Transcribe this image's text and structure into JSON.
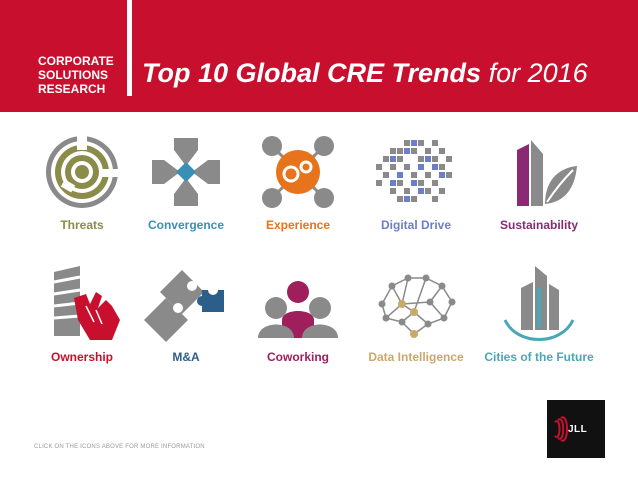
{
  "header": {
    "org_lines": [
      "CORPORATE",
      "SOLUTIONS",
      "RESEARCH"
    ],
    "title_bold": "Top 10 Global CRE Trends",
    "title_rest": " for 2016"
  },
  "colors": {
    "brand_red": "#c8102e",
    "olive": "#8c8c4a",
    "blue": "#3a8fb7",
    "orange": "#e8731d",
    "digital_blue": "#6c7ec7",
    "purple": "#8a2a74",
    "red": "#c8102e",
    "dark_blue": "#2b5f8a",
    "magenta": "#9e1f5c",
    "tan": "#c9a96b",
    "teal": "#4aa7b5"
  },
  "trends": [
    {
      "label": "Threats",
      "icon": "target-maze-icon",
      "color": "#8c8c4a"
    },
    {
      "label": "Convergence",
      "icon": "converging-arrows-icon",
      "color": "#3a8fb7"
    },
    {
      "label": "Experience",
      "icon": "gear-network-icon",
      "color": "#e8731d"
    },
    {
      "label": "Digital Drive",
      "icon": "pixel-grid-icon",
      "color": "#6c7ec7"
    },
    {
      "label": "Sustainability",
      "icon": "building-leaf-icon",
      "color": "#8a2a74"
    },
    {
      "label": "Ownership",
      "icon": "building-hand-icon",
      "color": "#c8102e"
    },
    {
      "label": "M&A",
      "icon": "puzzle-pieces-icon",
      "color": "#2b5f8a"
    },
    {
      "label": "Coworking",
      "icon": "people-group-icon",
      "color": "#9e1f5c"
    },
    {
      "label": "Data Intelligence",
      "icon": "network-brain-icon",
      "color": "#c9a96b"
    },
    {
      "label": "Cities of the Future",
      "icon": "city-skyline-icon",
      "color": "#4aa7b5"
    }
  ],
  "footer_note": "CLICK ON THE ICONS ABOVE FOR MORE INFORMATION",
  "logo_text": "JLL"
}
